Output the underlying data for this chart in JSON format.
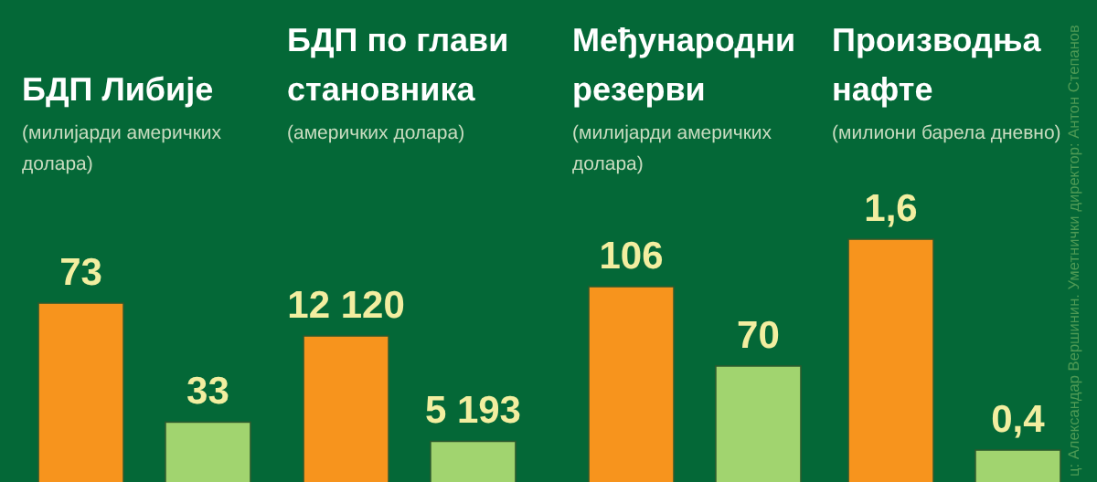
{
  "chart_data": [
    {
      "type": "bar",
      "title": "БДП Либије",
      "subtitle": "(милијарди америчких долара)",
      "categories": [
        null,
        null
      ],
      "values": [
        73,
        33
      ],
      "colors": [
        "#f7941d",
        "#a1d46f"
      ],
      "value_labels": [
        "73",
        "33"
      ]
    },
    {
      "type": "bar",
      "title": "БДП по глави становника",
      "subtitle": "(америчких долара)",
      "categories": [
        null,
        null
      ],
      "values": [
        12120,
        5193
      ],
      "colors": [
        "#f7941d",
        "#a1d46f"
      ],
      "value_labels": [
        "12 120",
        "5 193"
      ]
    },
    {
      "type": "bar",
      "title": "Међународни резерви",
      "subtitle": "(милијарди америчких долара)",
      "categories": [
        null,
        null
      ],
      "values": [
        106,
        70
      ],
      "colors": [
        "#f7941d",
        "#a1d46f"
      ],
      "value_labels": [
        "106",
        "70"
      ]
    },
    {
      "type": "bar",
      "title": "Производња нафте",
      "subtitle": "(милиони барела дневно)",
      "categories": [
        null,
        null
      ],
      "values": [
        1.6,
        0.4
      ],
      "colors": [
        "#f7941d",
        "#a1d46f"
      ],
      "value_labels": [
        "1,6",
        "0,4"
      ],
      "annotations": [
        "ц: Александар Вершинин. Уметнички директор: Антон Степанов"
      ]
    }
  ]
}
